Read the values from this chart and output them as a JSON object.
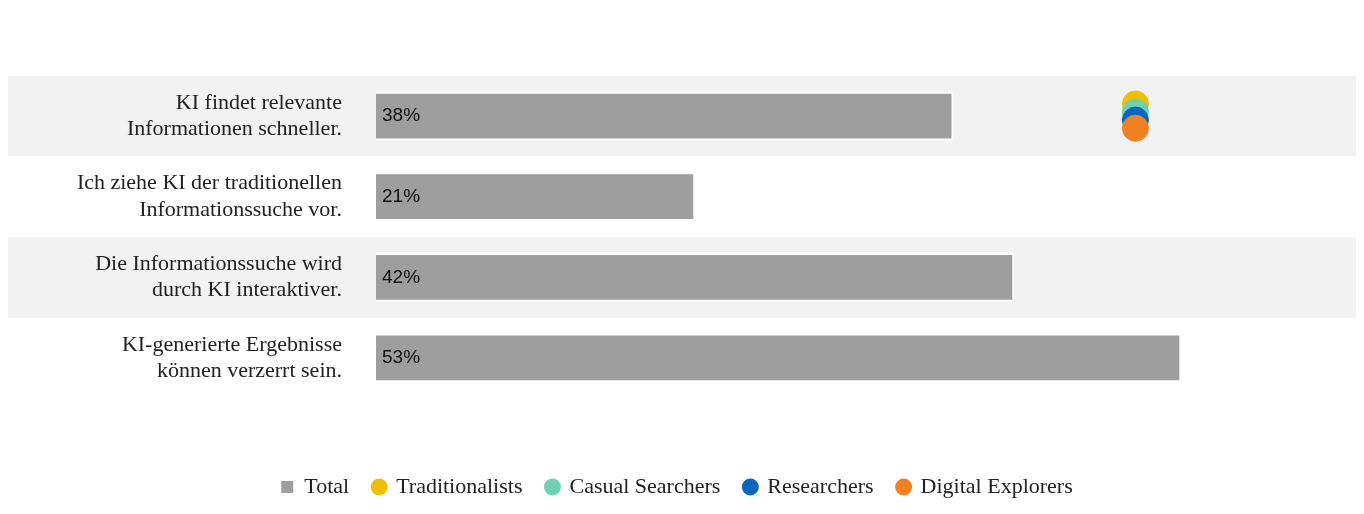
{
  "chart_data": {
    "type": "bar",
    "orientation": "horizontal",
    "categories": [
      "KI findet relevante Informationen schneller.",
      "Ich ziehe KI der traditionellen Informationssuche vor.",
      "Die Informationssuche wird durch KI interaktiver.",
      "KI-generierte Ergebnisse können verzerrt sein."
    ],
    "series": [
      {
        "name": "Total",
        "color": "#9e9e9e",
        "values": [
          38,
          21,
          42,
          53
        ],
        "value_labels": [
          "38%",
          "21%",
          "42%",
          "53%"
        ]
      },
      {
        "name": "Traditionalists",
        "type": "scatter",
        "color": "#f2be00",
        "values": [
          50,
          null,
          null,
          null
        ]
      },
      {
        "name": "Casual Searchers",
        "type": "scatter",
        "color": "#6fd1b4",
        "values": [
          50,
          null,
          null,
          null
        ]
      },
      {
        "name": "Researchers",
        "type": "scatter",
        "color": "#0a66c2",
        "values": [
          50,
          null,
          null,
          null
        ]
      },
      {
        "name": "Digital Explorers",
        "type": "scatter",
        "color": "#f08020",
        "values": [
          50,
          null,
          null,
          null
        ]
      }
    ],
    "marker": "circle",
    "legend": "bottom",
    "grid": false
  }
}
